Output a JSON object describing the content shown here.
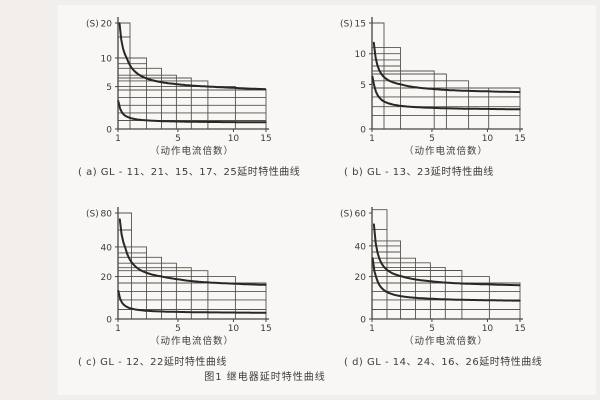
{
  "page": {
    "figure_title": "图1  继电器延时特性曲线",
    "background": "#f1eeec",
    "panel": "#f8f7f5"
  },
  "colors": {
    "grid": "#57534c",
    "axis": "#49453f",
    "curve": "#2a2621",
    "text": "#3f3b36"
  },
  "chart_data": [
    {
      "id": "a",
      "type": "line",
      "caption": "( a) GL - 11、21、15、17、25延时特性曲线",
      "xlabel": "（动作电流倍数）",
      "ylabel": "(S)",
      "xlim": [
        1,
        15
      ],
      "ylim": [
        0,
        20
      ],
      "xticks": [
        [
          1,
          0
        ],
        [
          5,
          0.405
        ],
        [
          10,
          0.78
        ],
        [
          15,
          1
        ]
      ],
      "yticks": [
        [
          0,
          0
        ],
        [
          5,
          0.4
        ],
        [
          10,
          0.67
        ],
        [
          20,
          1
        ]
      ],
      "grid_steps": [
        [
          1.8,
          20
        ],
        [
          1.8,
          16
        ],
        [
          2.9,
          10
        ],
        [
          2.9,
          9
        ],
        [
          3.9,
          8.2
        ],
        [
          4.9,
          7
        ],
        [
          6.2,
          6.5
        ],
        [
          7.7,
          6
        ],
        [
          10.3,
          5
        ],
        [
          15,
          4.6
        ],
        [
          15,
          3.7
        ],
        [
          15,
          2.8
        ],
        [
          15,
          1.9
        ],
        [
          15,
          1
        ]
      ],
      "series": [
        {
          "name": "upper",
          "x1": 1.1,
          "x0": 0.83,
          "yinf": 4.4,
          "k": 4.2,
          "sample_x": [
            1.2,
            2,
            3,
            5,
            10,
            15
          ],
          "sample_y": [
            15.8,
            8.0,
            6.3,
            5.4,
            4.9,
            4.7
          ]
        },
        {
          "name": "lower",
          "x1": 1.02,
          "x0": 0.8,
          "yinf": 0.75,
          "k": 0.56,
          "sample_x": [
            1.2,
            2,
            3,
            5,
            10,
            15
          ],
          "sample_y": [
            2.2,
            1.2,
            1.0,
            0.9,
            0.8,
            0.8
          ]
        }
      ]
    },
    {
      "id": "b",
      "type": "line",
      "caption": "( b) GL - 13、23延时特性曲线",
      "xlabel": "（动作电流倍数）",
      "ylabel": "(S)",
      "xlim": [
        1,
        15
      ],
      "ylim": [
        0,
        15
      ],
      "xticks": [
        [
          1,
          0
        ],
        [
          5,
          0.405
        ],
        [
          10,
          0.78
        ],
        [
          15,
          1
        ]
      ],
      "yticks": [
        [
          0,
          0
        ],
        [
          5,
          0.42
        ],
        [
          10,
          0.71
        ],
        [
          15,
          1
        ]
      ],
      "grid_steps": [
        [
          1.8,
          15
        ],
        [
          2.9,
          11
        ],
        [
          2.9,
          10
        ],
        [
          2.9,
          9
        ],
        [
          2.9,
          8
        ],
        [
          5.2,
          7.2
        ],
        [
          6.3,
          6.7
        ],
        [
          8.3,
          5.6
        ],
        [
          10.2,
          4.6
        ],
        [
          15,
          4.6
        ],
        [
          15,
          3.6
        ],
        [
          15,
          2.5
        ],
        [
          15,
          1.5
        ]
      ],
      "series": [
        {
          "name": "upper",
          "x1": 1.12,
          "x0": 0.85,
          "yinf": 4.0,
          "k": 2.1,
          "sample_x": [
            1.2,
            2,
            3,
            5,
            10,
            15
          ],
          "sample_y": [
            10.0,
            5.8,
            5.0,
            4.5,
            4.2,
            4.2
          ]
        },
        {
          "name": "lower",
          "x1": 1.03,
          "x0": 0.8,
          "yinf": 2.15,
          "k": 0.95,
          "sample_x": [
            1.2,
            2,
            3,
            5,
            10,
            15
          ],
          "sample_y": [
            4.5,
            2.9,
            2.6,
            2.4,
            2.3,
            2.2
          ]
        }
      ]
    },
    {
      "id": "c",
      "type": "line",
      "caption": "( c) GL - 12、22延时特性曲线",
      "xlabel": "（动作电流倍数）",
      "ylabel": "(S)",
      "xlim": [
        1,
        15
      ],
      "ylim": [
        0,
        80
      ],
      "xticks": [
        [
          1,
          0
        ],
        [
          5,
          0.405
        ],
        [
          10,
          0.78
        ],
        [
          15,
          1
        ]
      ],
      "yticks": [
        [
          0,
          0
        ],
        [
          20,
          0.4
        ],
        [
          40,
          0.68
        ],
        [
          80,
          1
        ]
      ],
      "grid_steps": [
        [
          1.9,
          80
        ],
        [
          1.9,
          60
        ],
        [
          2.9,
          40
        ],
        [
          2.9,
          36
        ],
        [
          3.9,
          33
        ],
        [
          4.9,
          29
        ],
        [
          6.2,
          26
        ],
        [
          7.7,
          24
        ],
        [
          10.3,
          20
        ],
        [
          15,
          17
        ],
        [
          15,
          13
        ],
        [
          15,
          9
        ],
        [
          15,
          4.5
        ]
      ],
      "series": [
        {
          "name": "upper",
          "x1": 1.12,
          "x0": 0.85,
          "yinf": 15.0,
          "k": 15.5,
          "sample_x": [
            1.2,
            2,
            3,
            5,
            10,
            15
          ],
          "sample_y": [
            59.3,
            28.5,
            22.2,
            18.7,
            16.7,
            16.1
          ]
        },
        {
          "name": "lower",
          "x1": 1.02,
          "x0": 0.8,
          "yinf": 2.8,
          "k": 2.3,
          "sample_x": [
            1.2,
            2,
            3,
            5,
            10,
            15
          ],
          "sample_y": [
            8.6,
            4.7,
            3.9,
            3.4,
            3.1,
            3.0
          ]
        }
      ]
    },
    {
      "id": "d",
      "type": "line",
      "caption": "( d) GL - 14、24、16、26延时特性曲线",
      "xlabel": "（动作电流倍数）",
      "ylabel": "(S)",
      "xlim": [
        1,
        15
      ],
      "ylim": [
        0,
        60
      ],
      "xticks": [
        [
          1,
          0
        ],
        [
          5,
          0.405
        ],
        [
          10,
          0.78
        ],
        [
          15,
          1
        ]
      ],
      "yticks": [
        [
          0,
          0
        ],
        [
          20,
          0.4
        ],
        [
          40,
          0.69
        ],
        [
          60,
          1
        ]
      ],
      "grid_steps": [
        [
          2.0,
          62
        ],
        [
          2.0,
          50
        ],
        [
          2.9,
          43
        ],
        [
          2.9,
          40
        ],
        [
          2.9,
          36
        ],
        [
          3.9,
          32
        ],
        [
          4.9,
          29
        ],
        [
          6.2,
          26
        ],
        [
          7.7,
          24
        ],
        [
          10.3,
          20
        ],
        [
          15,
          17
        ],
        [
          15,
          13
        ],
        [
          15,
          9
        ],
        [
          15,
          4.5
        ]
      ],
      "series": [
        {
          "name": "upper",
          "x1": 1.13,
          "x0": 0.85,
          "yinf": 15.2,
          "k": 10.6,
          "sample_x": [
            1.2,
            2,
            3,
            5,
            10,
            15
          ],
          "sample_y": [
            45.5,
            24.4,
            20.1,
            17.8,
            16.4,
            15.9
          ]
        },
        {
          "name": "lower",
          "x1": 1.04,
          "x0": 0.82,
          "yinf": 8.3,
          "k": 5.2,
          "sample_x": [
            1.2,
            2,
            3,
            5,
            10,
            15
          ],
          "sample_y": [
            22.0,
            12.7,
            10.7,
            9.5,
            8.9,
            8.7
          ]
        }
      ]
    }
  ]
}
